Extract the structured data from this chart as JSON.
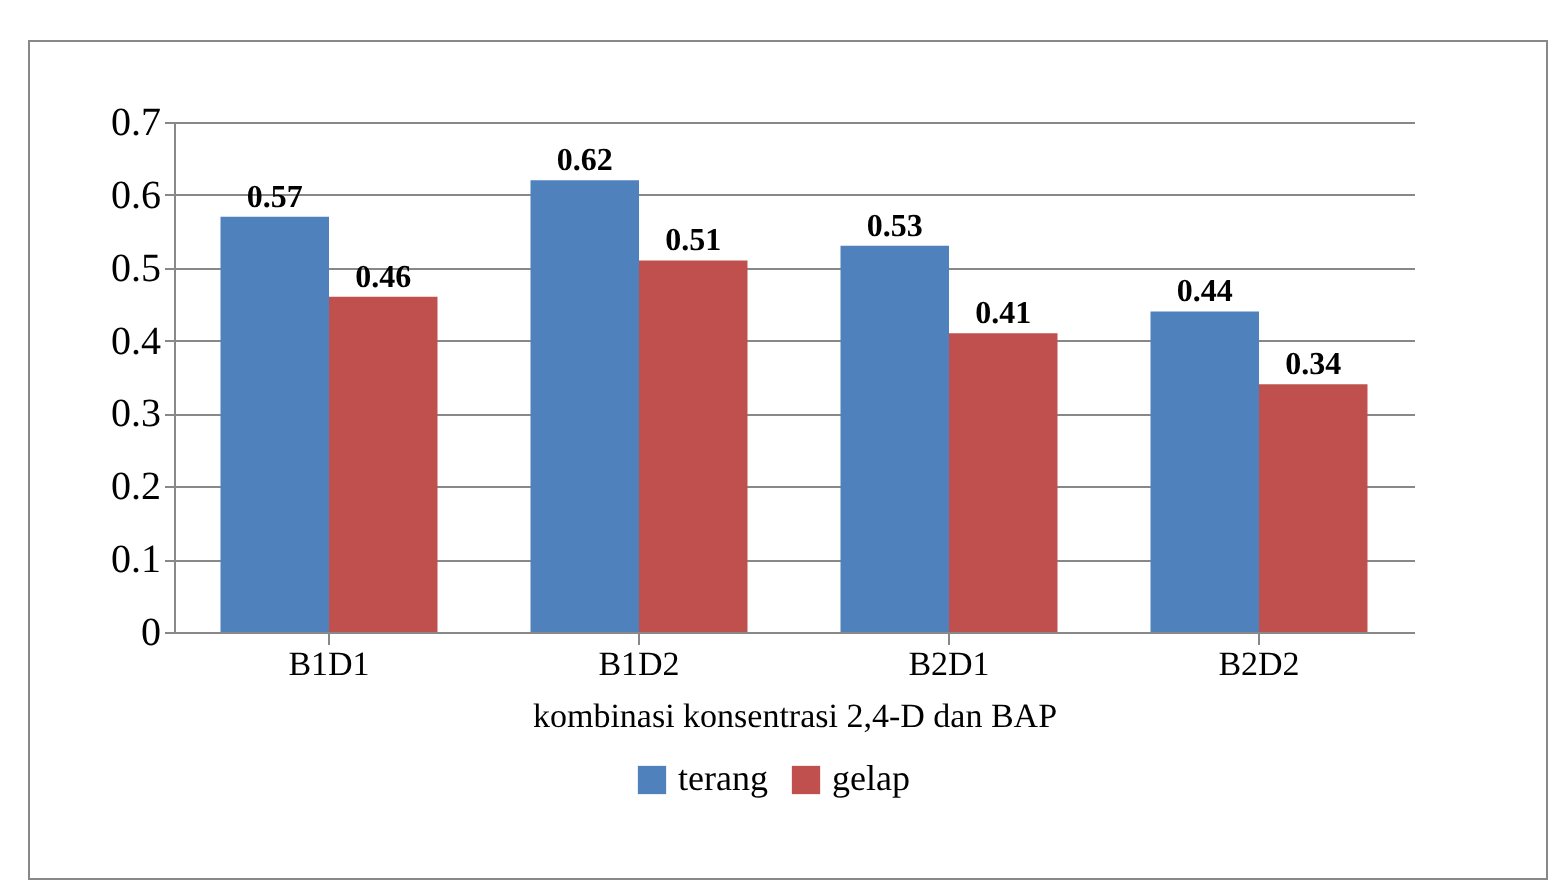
{
  "chart_data": {
    "type": "bar",
    "xlabel": "kombinasi konsentrasi 2,4-D dan BAP",
    "categories": [
      "B1D1",
      "B1D2",
      "B2D1",
      "B2D2"
    ],
    "series": [
      {
        "name": "terang",
        "color": "#4f81bd",
        "values": [
          0.57,
          0.62,
          0.53,
          0.44
        ]
      },
      {
        "name": "gelap",
        "color": "#c0504d",
        "values": [
          0.46,
          0.51,
          0.41,
          0.34
        ]
      }
    ],
    "ylim": [
      0,
      0.7
    ],
    "yticks": [
      0,
      0.1,
      0.2,
      0.3,
      0.4,
      0.5,
      0.6,
      0.7
    ],
    "grid": "y",
    "legend": "bottom",
    "data_labels": true
  }
}
